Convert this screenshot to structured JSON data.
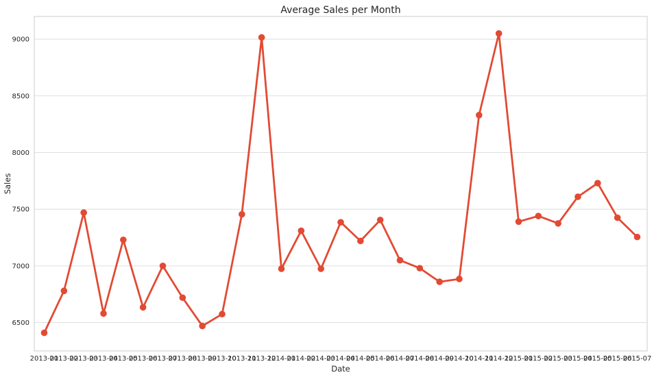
{
  "chart_data": {
    "type": "line",
    "title": "Average Sales per Month",
    "xlabel": "Date",
    "ylabel": "Sales",
    "ylim": [
      6250,
      9200
    ],
    "yticks": [
      6500,
      7000,
      7500,
      8000,
      8500,
      9000
    ],
    "ytick_labels": [
      "6500",
      "7000",
      "7500",
      "8000",
      "8500",
      "9000"
    ],
    "grid": true,
    "legend": "none",
    "color": "#e24a33",
    "categories": [
      "2013-01",
      "2013-02",
      "2013-03",
      "2013-04",
      "2013-05",
      "2013-06",
      "2013-07",
      "2013-08",
      "2013-09",
      "2013-10",
      "2013-11",
      "2013-12",
      "2014-01",
      "2014-02",
      "2014-03",
      "2014-04",
      "2014-05",
      "2014-06",
      "2014-07",
      "2014-08",
      "2014-09",
      "2014-10",
      "2014-11",
      "2014-12",
      "2015-01",
      "2015-02",
      "2015-03",
      "2015-04",
      "2015-05",
      "2015-06",
      "2015-07"
    ],
    "category_labels": [
      "2013-01",
      "2013-02",
      "2013-03",
      "2013-04",
      "2013-05",
      "2013-06",
      "2013-07",
      "2013-08",
      "2013-09",
      "2013-10",
      "2013-11",
      "2013-12",
      "2014-01",
      "2014-02",
      "2014-03",
      "2014-04",
      "2014-05",
      "2014-06",
      "2014-07",
      "2014-08",
      "2014-09",
      "2014-10",
      "2014-11",
      "2014-12",
      "2015-01",
      "2015-02",
      "2015-03",
      "2015-04",
      "2015-05",
      "2015-06",
      "2015-07"
    ],
    "series": [
      {
        "values": [
          6410,
          6780,
          7470,
          6580,
          7230,
          6635,
          7000,
          6720,
          6470,
          6575,
          7455,
          9015,
          6975,
          7310,
          6975,
          7385,
          7220,
          7405,
          7050,
          6980,
          6860,
          6885,
          8330,
          9050,
          7390,
          7440,
          7375,
          7610,
          7730,
          7425,
          7255
        ]
      }
    ]
  }
}
